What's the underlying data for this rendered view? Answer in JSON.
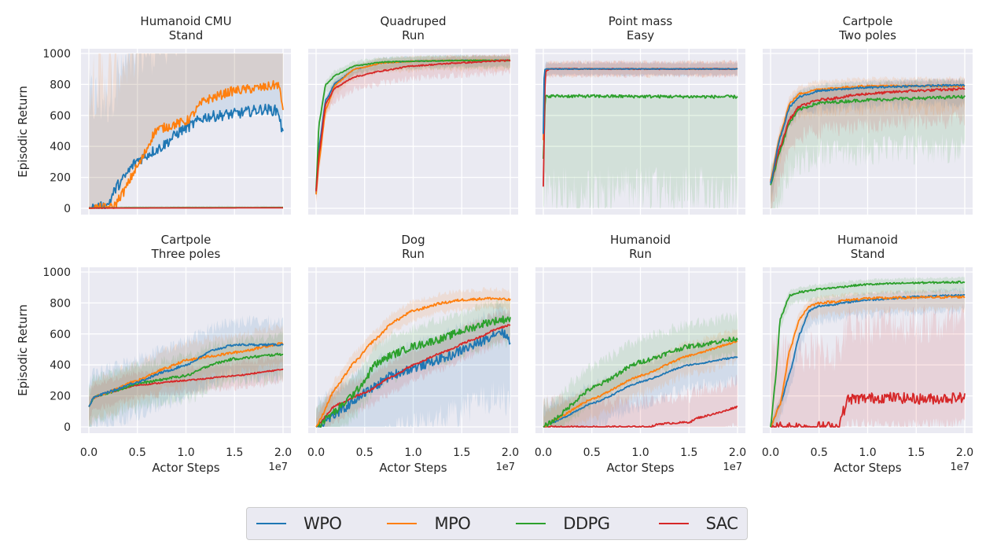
{
  "legend": {
    "items": [
      {
        "name": "WPO",
        "color": "#1f77b4"
      },
      {
        "name": "MPO",
        "color": "#ff7f0e"
      },
      {
        "name": "DDPG",
        "color": "#2ca02c"
      },
      {
        "name": "SAC",
        "color": "#d62728"
      }
    ]
  },
  "chart_data": [
    {
      "type": "line",
      "title": "Humanoid CMU\nStand",
      "xlabel": "",
      "ylabel": "Episodic Return",
      "x_scale_label": "",
      "xlim": [
        0,
        2.0
      ],
      "ylim": [
        0,
        1000
      ],
      "x_multiplier": "1e7",
      "xticks": [
        "0.0",
        "0.5",
        "1.0",
        "1.5",
        "2.0"
      ],
      "yticks": [
        "0",
        "200",
        "400",
        "600",
        "800",
        "1000"
      ],
      "grid": true,
      "series": [
        {
          "name": "WPO",
          "x": [
            0,
            0.18,
            0.3,
            0.5,
            0.7,
            1.0,
            1.2,
            1.5,
            1.8,
            1.95,
            2.0
          ],
          "y": [
            0,
            10,
            150,
            310,
            380,
            520,
            590,
            610,
            640,
            630,
            470
          ],
          "band": [
            0,
            700
          ],
          "noise": 35
        },
        {
          "name": "MPO",
          "x": [
            0,
            0.25,
            0.35,
            0.5,
            0.7,
            1.0,
            1.2,
            1.5,
            1.8,
            1.95,
            2.0
          ],
          "y": [
            0,
            5,
            100,
            270,
            510,
            560,
            700,
            760,
            780,
            800,
            650
          ],
          "band": [
            0,
            850
          ],
          "noise": 30
        },
        {
          "name": "DDPG",
          "x": [
            0,
            2.0
          ],
          "y": [
            3,
            5
          ],
          "band": [
            0,
            10
          ],
          "noise": 0
        },
        {
          "name": "SAC",
          "x": [
            0,
            2.0
          ],
          "y": [
            2,
            3
          ],
          "band": [
            0,
            6
          ],
          "noise": 0
        }
      ]
    },
    {
      "type": "line",
      "title": "Quadruped\nRun",
      "xlabel": "",
      "ylabel": "",
      "xlim": [
        0,
        2.0
      ],
      "ylim": [
        0,
        1000
      ],
      "x_multiplier": "1e7",
      "xticks": [
        "0.0",
        "0.5",
        "1.0",
        "1.5",
        "2.0"
      ],
      "yticks": [
        "0",
        "200",
        "400",
        "600",
        "800",
        "1000"
      ],
      "grid": true,
      "series": [
        {
          "name": "WPO",
          "x": [
            0,
            0.03,
            0.1,
            0.2,
            0.4,
            0.7,
            1.0,
            1.5,
            2.0
          ],
          "y": [
            100,
            400,
            700,
            810,
            900,
            940,
            950,
            955,
            955
          ],
          "band": [
            40,
            30
          ],
          "noise": 3
        },
        {
          "name": "MPO",
          "x": [
            0,
            0.03,
            0.1,
            0.2,
            0.4,
            0.7,
            1.0,
            1.5,
            2.0
          ],
          "y": [
            90,
            300,
            640,
            800,
            900,
            940,
            950,
            955,
            955
          ],
          "band": [
            60,
            30
          ],
          "noise": 3
        },
        {
          "name": "DDPG",
          "x": [
            0,
            0.03,
            0.1,
            0.2,
            0.4,
            0.7,
            1.0,
            1.5,
            2.0
          ],
          "y": [
            120,
            550,
            800,
            860,
            920,
            945,
            950,
            955,
            955
          ],
          "band": [
            50,
            30
          ],
          "noise": 3
        },
        {
          "name": "SAC",
          "x": [
            0,
            0.03,
            0.1,
            0.2,
            0.4,
            0.7,
            1.0,
            1.5,
            2.0
          ],
          "y": [
            110,
            350,
            680,
            780,
            850,
            890,
            920,
            940,
            955
          ],
          "band": [
            80,
            40
          ],
          "noise": 4
        }
      ]
    },
    {
      "type": "line",
      "title": "Point mass\nEasy",
      "xlabel": "",
      "ylabel": "",
      "xlim": [
        0,
        2.0
      ],
      "ylim": [
        0,
        1000
      ],
      "x_multiplier": "1e7",
      "xticks": [
        "0.0",
        "0.5",
        "1.0",
        "1.5",
        "2.0"
      ],
      "yticks": [
        "0",
        "200",
        "400",
        "600",
        "800",
        "1000"
      ],
      "grid": true,
      "series": [
        {
          "name": "DDPG",
          "x": [
            0,
            0.02,
            0.05,
            2.0
          ],
          "y": [
            320,
            720,
            725,
            720
          ],
          "band": [
            640,
            10
          ],
          "noise": 10
        },
        {
          "name": "MPO",
          "x": [
            0,
            0.02,
            0.05,
            2.0
          ],
          "y": [
            440,
            890,
            900,
            900
          ],
          "band": [
            45,
            45
          ],
          "noise": 3
        },
        {
          "name": "SAC",
          "x": [
            0,
            0.02,
            0.06,
            2.0
          ],
          "y": [
            140,
            880,
            900,
            900
          ],
          "band": [
            45,
            45
          ],
          "noise": 3
        },
        {
          "name": "WPO",
          "x": [
            0,
            0.01,
            0.04,
            2.0
          ],
          "y": [
            480,
            895,
            900,
            900
          ],
          "band": [
            40,
            40
          ],
          "noise": 2
        }
      ]
    },
    {
      "type": "line",
      "title": "Cartpole\nTwo poles",
      "xlabel": "",
      "ylabel": "",
      "xlim": [
        0,
        2.0
      ],
      "ylim": [
        0,
        1000
      ],
      "x_multiplier": "1e7",
      "xticks": [
        "0.0",
        "0.5",
        "1.0",
        "1.5",
        "2.0"
      ],
      "yticks": [
        "0",
        "200",
        "400",
        "600",
        "800",
        "1000"
      ],
      "grid": true,
      "series": [
        {
          "name": "DDPG",
          "x": [
            0,
            0.1,
            0.2,
            0.3,
            0.5,
            1.0,
            1.5,
            2.0
          ],
          "y": [
            150,
            380,
            560,
            640,
            680,
            700,
            710,
            720
          ],
          "band": [
            330,
            100
          ],
          "noise": 10
        },
        {
          "name": "SAC",
          "x": [
            0,
            0.1,
            0.2,
            0.3,
            0.5,
            1.0,
            1.5,
            2.0
          ],
          "y": [
            170,
            400,
            580,
            660,
            700,
            740,
            760,
            770
          ],
          "band": [
            200,
            60
          ],
          "noise": 8
        },
        {
          "name": "MPO",
          "x": [
            0,
            0.1,
            0.2,
            0.3,
            0.5,
            1.0,
            1.5,
            2.0
          ],
          "y": [
            180,
            480,
            680,
            740,
            770,
            790,
            790,
            790
          ],
          "band": [
            150,
            50
          ],
          "noise": 6
        },
        {
          "name": "WPO",
          "x": [
            0,
            0.1,
            0.2,
            0.3,
            0.5,
            1.0,
            1.5,
            2.0
          ],
          "y": [
            160,
            460,
            660,
            720,
            760,
            780,
            790,
            795
          ],
          "band": [
            120,
            40
          ],
          "noise": 6
        }
      ]
    },
    {
      "type": "line",
      "title": "Cartpole\nThree poles",
      "xlabel": "Actor Steps",
      "ylabel": "Episodic Return",
      "xlim": [
        0,
        2.0
      ],
      "ylim": [
        0,
        1000
      ],
      "x_multiplier": "1e7",
      "xticks": [
        "0.0",
        "0.5",
        "1.0",
        "1.5",
        "2.0"
      ],
      "yticks": [
        "0",
        "200",
        "400",
        "600",
        "800",
        "1000"
      ],
      "grid": true,
      "series": [
        {
          "name": "SAC",
          "x": [
            0,
            0.05,
            0.2,
            0.5,
            1.0,
            1.5,
            2.0
          ],
          "y": [
            130,
            190,
            220,
            270,
            300,
            330,
            370
          ],
          "band": [
            80,
            80
          ],
          "noise": 4
        },
        {
          "name": "DDPG",
          "x": [
            0,
            0.05,
            0.2,
            0.5,
            1.0,
            1.3,
            1.5,
            2.0
          ],
          "y": [
            130,
            190,
            220,
            280,
            330,
            410,
            440,
            470
          ],
          "band": [
            150,
            120
          ],
          "noise": 8
        },
        {
          "name": "MPO",
          "x": [
            0,
            0.05,
            0.2,
            0.5,
            0.8,
            1.0,
            1.3,
            1.5,
            2.0
          ],
          "y": [
            130,
            190,
            225,
            300,
            380,
            430,
            460,
            480,
            540
          ],
          "band": [
            140,
            110
          ],
          "noise": 8
        },
        {
          "name": "WPO",
          "x": [
            0,
            0.05,
            0.2,
            0.5,
            0.8,
            1.0,
            1.3,
            1.5,
            2.0
          ],
          "y": [
            130,
            190,
            225,
            290,
            360,
            400,
            500,
            530,
            530
          ],
          "band": [
            200,
            150
          ],
          "noise": 7
        }
      ]
    },
    {
      "type": "line",
      "title": "Dog\nRun",
      "xlabel": "Actor Steps",
      "ylabel": "",
      "xlim": [
        0,
        2.0
      ],
      "ylim": [
        0,
        1000
      ],
      "x_multiplier": "1e7",
      "xticks": [
        "0.0",
        "0.5",
        "1.0",
        "1.5",
        "2.0"
      ],
      "yticks": [
        "0",
        "200",
        "400",
        "600",
        "800",
        "1000"
      ],
      "grid": true,
      "series": [
        {
          "name": "WPO",
          "x": [
            0,
            0.2,
            0.5,
            0.8,
            1.0,
            1.3,
            1.6,
            1.9,
            2.0
          ],
          "y": [
            0,
            80,
            220,
            340,
            380,
            440,
            520,
            620,
            560
          ],
          "band": [
            400,
            150
          ],
          "noise": 30
        },
        {
          "name": "SAC",
          "x": [
            0,
            0.2,
            0.5,
            0.8,
            1.0,
            1.3,
            1.6,
            1.9,
            2.0
          ],
          "y": [
            0,
            140,
            220,
            330,
            400,
            480,
            560,
            640,
            660
          ],
          "band": [
            100,
            100
          ],
          "noise": 6
        },
        {
          "name": "DDPG",
          "x": [
            0,
            0.2,
            0.4,
            0.5,
            0.6,
            0.8,
            1.0,
            1.3,
            1.5,
            1.8,
            2.0
          ],
          "y": [
            0,
            100,
            220,
            300,
            400,
            470,
            520,
            570,
            620,
            680,
            700
          ],
          "band": [
            150,
            120
          ],
          "noise": 25
        },
        {
          "name": "MPO",
          "x": [
            0,
            0.2,
            0.4,
            0.6,
            0.8,
            1.0,
            1.3,
            1.5,
            1.8,
            2.0
          ],
          "y": [
            0,
            250,
            420,
            560,
            680,
            750,
            800,
            820,
            830,
            820
          ],
          "band": [
            60,
            60
          ],
          "noise": 8
        }
      ]
    },
    {
      "type": "line",
      "title": "Humanoid\nRun",
      "xlabel": "Actor Steps",
      "ylabel": "",
      "xlim": [
        0,
        2.0
      ],
      "ylim": [
        0,
        1000
      ],
      "x_multiplier": "1e7",
      "xticks": [
        "0.0",
        "0.5",
        "1.0",
        "1.5",
        "2.0"
      ],
      "yticks": [
        "0",
        "200",
        "400",
        "600",
        "800",
        "1000"
      ],
      "grid": true,
      "series": [
        {
          "name": "SAC",
          "x": [
            0,
            1.1,
            1.2,
            1.5,
            1.6,
            1.8,
            2.0
          ],
          "y": [
            0,
            0,
            20,
            30,
            60,
            90,
            130
          ],
          "band": [
            130,
            170
          ],
          "noise": 6
        },
        {
          "name": "WPO",
          "x": [
            0,
            0.1,
            0.5,
            1.0,
            1.5,
            2.0
          ],
          "y": [
            0,
            30,
            150,
            290,
            400,
            450
          ],
          "band": [
            150,
            120
          ],
          "noise": 5
        },
        {
          "name": "MPO",
          "x": [
            0,
            0.1,
            0.5,
            1.0,
            1.5,
            2.0
          ],
          "y": [
            0,
            40,
            180,
            330,
            460,
            550
          ],
          "band": [
            120,
            80
          ],
          "noise": 6
        },
        {
          "name": "DDPG",
          "x": [
            0,
            0.05,
            0.5,
            1.0,
            1.5,
            2.0
          ],
          "y": [
            0,
            20,
            250,
            420,
            520,
            570
          ],
          "band": [
            100,
            140
          ],
          "noise": 15
        }
      ]
    },
    {
      "type": "line",
      "title": "Humanoid\nStand",
      "xlabel": "Actor Steps",
      "ylabel": "",
      "xlim": [
        0,
        2.0
      ],
      "ylim": [
        0,
        1000
      ],
      "x_multiplier": "1e7",
      "xticks": [
        "0.0",
        "0.5",
        "1.0",
        "1.5",
        "2.0"
      ],
      "yticks": [
        "0",
        "200",
        "400",
        "600",
        "800",
        "1000"
      ],
      "grid": true,
      "series": [
        {
          "name": "SAC",
          "x": [
            0,
            0.7,
            0.75,
            0.8,
            1.2,
            1.6,
            2.0
          ],
          "y": [
            0,
            0,
            100,
            180,
            190,
            180,
            190
          ],
          "band": [
            180,
            480
          ],
          "noise": 35
        },
        {
          "name": "WPO",
          "x": [
            0,
            0.1,
            0.2,
            0.3,
            0.4,
            0.5,
            1.0,
            1.5,
            2.0
          ],
          "y": [
            0,
            150,
            350,
            600,
            750,
            780,
            820,
            840,
            850
          ],
          "band": [
            100,
            40
          ],
          "noise": 6
        },
        {
          "name": "MPO",
          "x": [
            0,
            0.1,
            0.2,
            0.3,
            0.4,
            0.5,
            1.0,
            1.5,
            2.0
          ],
          "y": [
            0,
            150,
            500,
            700,
            780,
            800,
            830,
            835,
            840
          ],
          "band": [
            80,
            40
          ],
          "noise": 8
        },
        {
          "name": "DDPG",
          "x": [
            0,
            0.05,
            0.1,
            0.2,
            0.3,
            0.5,
            1.0,
            1.5,
            2.0
          ],
          "y": [
            0,
            300,
            700,
            850,
            870,
            890,
            920,
            930,
            935
          ],
          "band": [
            60,
            30
          ],
          "noise": 6
        }
      ]
    }
  ]
}
